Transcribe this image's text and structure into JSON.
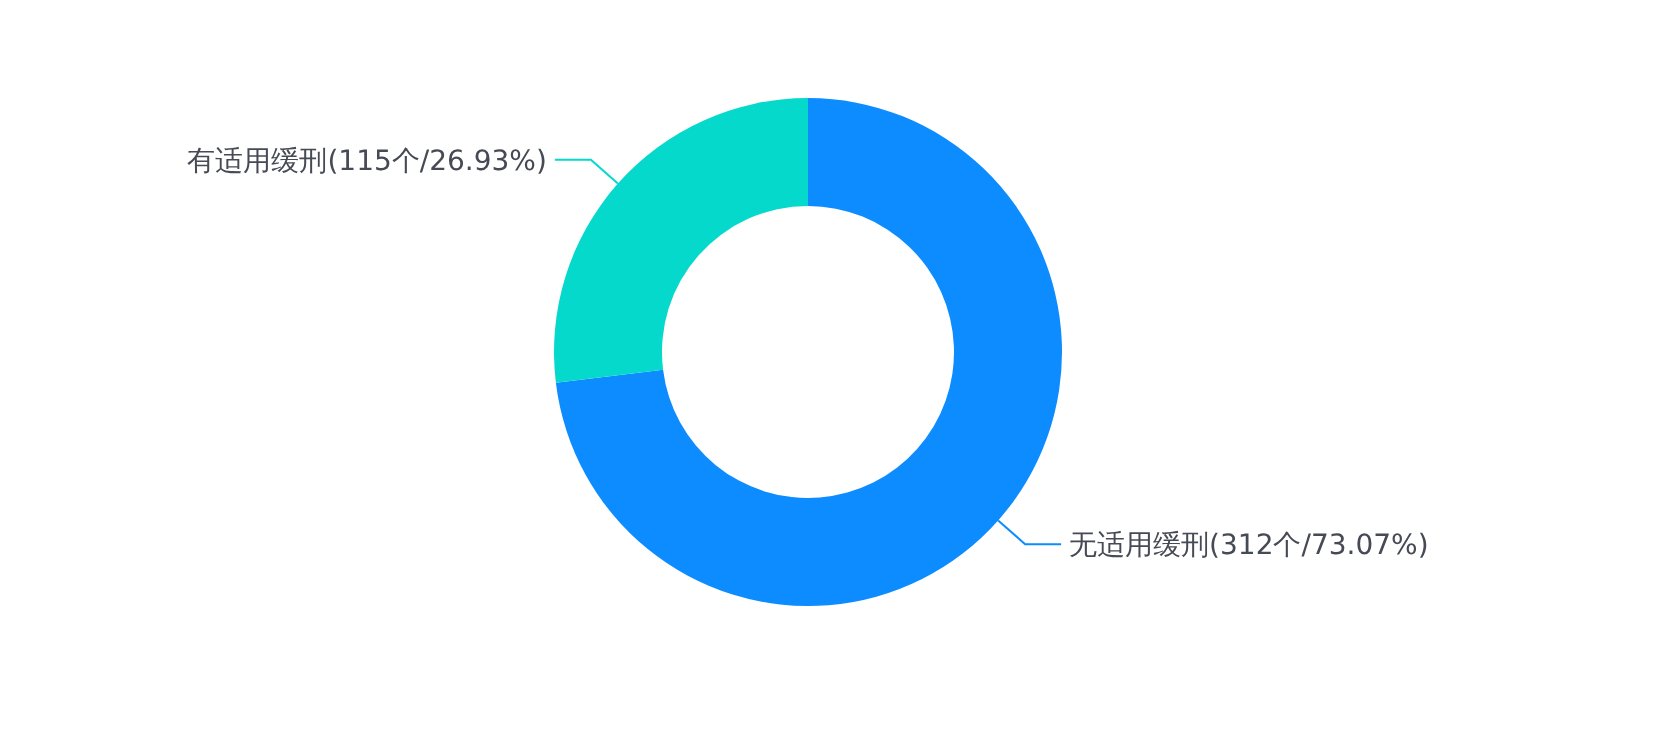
{
  "chart_data": {
    "type": "donut",
    "categories": [
      "无适用缓刑",
      "有适用缓刑"
    ],
    "values": [
      312,
      115
    ],
    "colors": [
      "#0c8cfe",
      "#05d9cc"
    ],
    "value_labels": [
      "(312个/73.07%)",
      "(115个/26.93%)"
    ]
  }
}
